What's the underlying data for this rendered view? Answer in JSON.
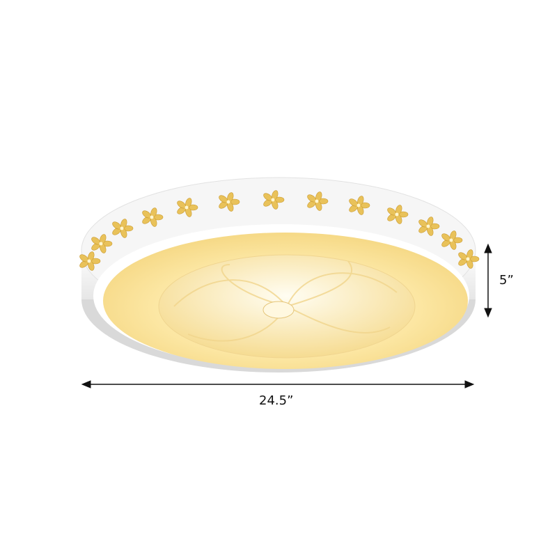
{
  "product": {
    "dimensions": {
      "width_label": "24.5”",
      "height_label": "5”"
    },
    "colors": {
      "frame": "#f2f2f2",
      "diffuser": "#fbe7a6",
      "flower": "#e9c25a",
      "dimension_line": "#111111"
    }
  }
}
